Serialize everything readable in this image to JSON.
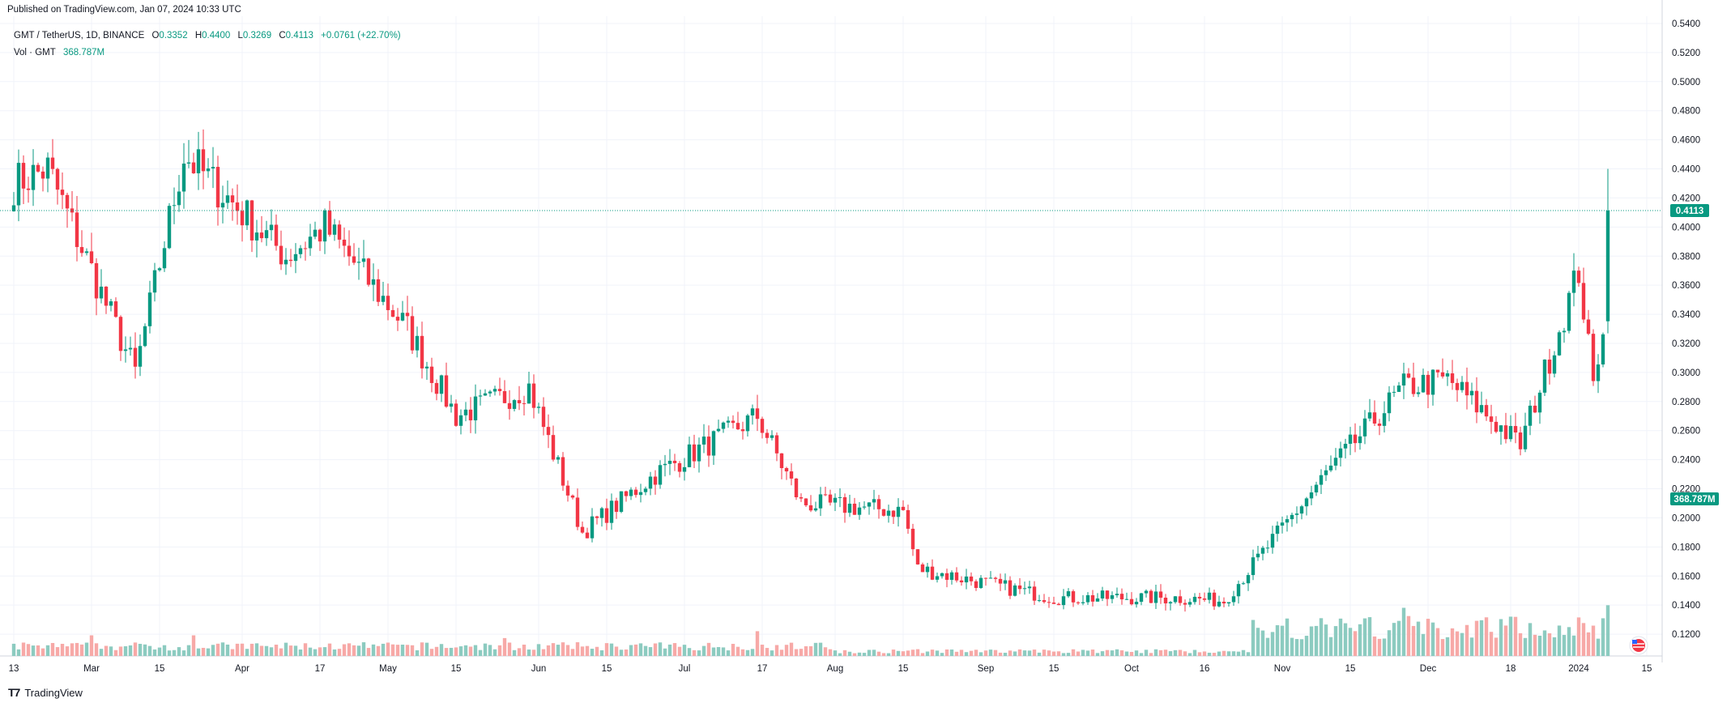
{
  "header": {
    "published": "Published on TradingView.com, Jan 07, 2024 10:33 UTC"
  },
  "legend": {
    "symbol": "GMT / TetherUS, 1D, BINANCE",
    "open_label": "O",
    "open": "0.3352",
    "high_label": "H",
    "high": "0.4400",
    "low_label": "L",
    "low": "0.3269",
    "close_label": "C",
    "close": "0.4113",
    "change": "+0.0761 (+22.70%)",
    "vol_label": "Vol · GMT",
    "vol_value": "368.787M"
  },
  "badges": {
    "price": "0.4113",
    "volume": "368.787M"
  },
  "footer": {
    "brand": "TradingView"
  },
  "colors": {
    "up": "#089981",
    "down": "#f23645",
    "vol_up": "#8ccbc0",
    "vol_down": "#f7a9a7",
    "grid": "#f0f3fa"
  },
  "chart_data": {
    "type": "candlestick",
    "symbol": "GMT / TetherUS",
    "interval": "1D",
    "exchange": "BINANCE",
    "y_axis_ticks": [
      "0.1200",
      "0.1400",
      "0.1600",
      "0.1800",
      "0.2000",
      "0.2200",
      "0.2400",
      "0.2600",
      "0.2800",
      "0.3000",
      "0.3200",
      "0.3400",
      "0.3600",
      "0.3800",
      "0.4000",
      "0.4200",
      "0.4400",
      "0.4600",
      "0.4800",
      "0.5000",
      "0.5200",
      "0.5400"
    ],
    "ylim": [
      0.105,
      0.545
    ],
    "x_axis_ticks": [
      "13",
      "Mar",
      "15",
      "Apr",
      "17",
      "May",
      "15",
      "Jun",
      "15",
      "Jul",
      "17",
      "Aug",
      "15",
      "Sep",
      "15",
      "Oct",
      "16",
      "Nov",
      "15",
      "Dec",
      "18",
      "2024",
      "15"
    ],
    "date_range": [
      "2023-02-13",
      "2024-01-07"
    ],
    "last_price": 0.4113,
    "last_volume": "368.787M",
    "key_points": [
      {
        "date": "2023-02-13",
        "close": 0.43
      },
      {
        "date": "2023-02-20",
        "close": 0.44
      },
      {
        "date": "2023-03-10",
        "close": 0.3
      },
      {
        "date": "2023-03-20",
        "close": 0.45
      },
      {
        "date": "2023-04-10",
        "close": 0.38
      },
      {
        "date": "2023-04-18",
        "close": 0.4
      },
      {
        "date": "2023-05-05",
        "close": 0.33
      },
      {
        "date": "2023-05-15",
        "close": 0.27
      },
      {
        "date": "2023-05-30",
        "close": 0.29
      },
      {
        "date": "2023-06-10",
        "close": 0.19
      },
      {
        "date": "2023-06-25",
        "close": 0.23
      },
      {
        "date": "2023-07-16",
        "close": 0.27
      },
      {
        "date": "2023-07-25",
        "close": 0.21
      },
      {
        "date": "2023-08-15",
        "close": 0.205
      },
      {
        "date": "2023-08-18",
        "close": 0.165
      },
      {
        "date": "2023-09-15",
        "close": 0.145
      },
      {
        "date": "2023-10-10",
        "close": 0.145
      },
      {
        "date": "2023-10-20",
        "close": 0.143
      },
      {
        "date": "2023-11-10",
        "close": 0.23
      },
      {
        "date": "2023-11-26",
        "close": 0.29
      },
      {
        "date": "2023-12-05",
        "close": 0.295
      },
      {
        "date": "2023-12-20",
        "close": 0.25
      },
      {
        "date": "2024-01-01",
        "close": 0.37
      },
      {
        "date": "2024-01-04",
        "close": 0.29
      },
      {
        "date": "2024-01-06",
        "close": 0.3352
      },
      {
        "date": "2024-01-07",
        "open": 0.3352,
        "high": 0.44,
        "low": 0.3269,
        "close": 0.4113
      }
    ],
    "volume_spikes_M": [
      {
        "date": "2023-03-01",
        "volume": 150
      },
      {
        "date": "2023-03-22",
        "volume": 150
      },
      {
        "date": "2023-05-25",
        "volume": 130
      },
      {
        "date": "2023-07-16",
        "volume": 180
      },
      {
        "date": "2023-11-26",
        "volume": 350
      },
      {
        "date": "2024-01-01",
        "volume": 280
      },
      {
        "date": "2024-01-07",
        "volume": 368.787
      }
    ]
  }
}
